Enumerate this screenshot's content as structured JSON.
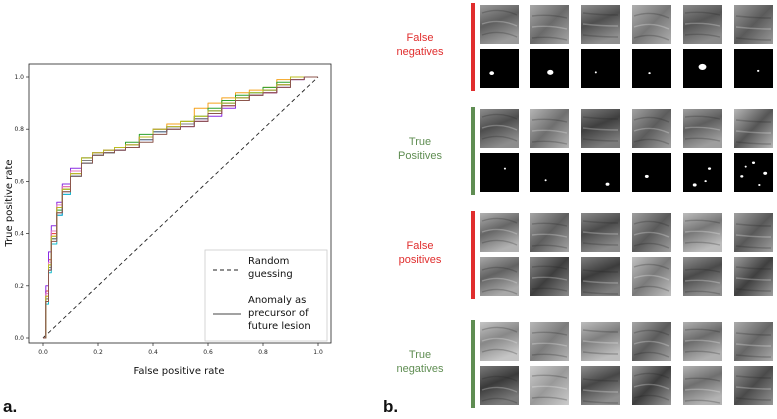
{
  "panel_a_label": "a.",
  "panel_b_label": "b.",
  "chart_data": {
    "type": "line",
    "title": "",
    "xlabel": "False positive rate",
    "ylabel": "True positive rate",
    "xlim": [
      0.0,
      1.0
    ],
    "ylim": [
      0.0,
      1.0
    ],
    "xticks": [
      "0.0",
      "0.2",
      "0.4",
      "0.6",
      "0.8",
      "1.0"
    ],
    "yticks": [
      "0.0",
      "0.2",
      "0.4",
      "0.6",
      "0.8",
      "1.0"
    ],
    "grid": false,
    "legend_position": "bottom-right",
    "legend": [
      {
        "label": "Random guessing",
        "lines": [
          "Random",
          "guessing"
        ],
        "style": "dashed",
        "color": "#222222"
      },
      {
        "label": "Anomaly as precursor of future lesion",
        "lines": [
          "Anomaly as",
          "precursor of",
          "future lesion"
        ],
        "style": "solid",
        "color": "#444444"
      }
    ],
    "baseline": {
      "x": [
        0,
        1
      ],
      "y": [
        0,
        1
      ]
    },
    "series": [
      {
        "color": "#1f4fd8",
        "x": [
          0,
          0.01,
          0.02,
          0.03,
          0.05,
          0.07,
          0.1,
          0.14,
          0.18,
          0.22,
          0.26,
          0.3,
          0.35,
          0.4,
          0.45,
          0.5,
          0.55,
          0.6,
          0.65,
          0.7,
          0.75,
          0.8,
          0.85,
          0.9,
          0.95,
          1.0
        ],
        "y": [
          0,
          0.14,
          0.26,
          0.38,
          0.47,
          0.55,
          0.62,
          0.67,
          0.7,
          0.71,
          0.72,
          0.73,
          0.76,
          0.79,
          0.81,
          0.82,
          0.84,
          0.87,
          0.9,
          0.92,
          0.93,
          0.95,
          0.97,
          1.0,
          1.0,
          1.0
        ]
      },
      {
        "color": "#e8352a",
        "x": [
          0,
          0.01,
          0.02,
          0.03,
          0.05,
          0.07,
          0.1,
          0.14,
          0.18,
          0.22,
          0.26,
          0.3,
          0.35,
          0.4,
          0.45,
          0.5,
          0.55,
          0.6,
          0.65,
          0.7,
          0.75,
          0.8,
          0.85,
          0.9,
          0.95,
          1.0
        ],
        "y": [
          0,
          0.18,
          0.3,
          0.4,
          0.5,
          0.58,
          0.64,
          0.68,
          0.71,
          0.72,
          0.72,
          0.74,
          0.77,
          0.8,
          0.81,
          0.82,
          0.83,
          0.86,
          0.89,
          0.92,
          0.93,
          0.94,
          0.97,
          1.0,
          1.0,
          1.0
        ]
      },
      {
        "color": "#f5a21b",
        "x": [
          0,
          0.01,
          0.02,
          0.03,
          0.05,
          0.07,
          0.1,
          0.14,
          0.18,
          0.22,
          0.26,
          0.3,
          0.35,
          0.4,
          0.45,
          0.5,
          0.55,
          0.6,
          0.65,
          0.7,
          0.75,
          0.8,
          0.85,
          0.9,
          0.95,
          1.0
        ],
        "y": [
          0,
          0.16,
          0.28,
          0.39,
          0.5,
          0.57,
          0.63,
          0.68,
          0.71,
          0.72,
          0.73,
          0.74,
          0.77,
          0.8,
          0.82,
          0.83,
          0.88,
          0.9,
          0.92,
          0.94,
          0.95,
          0.96,
          0.99,
          1.0,
          1.0,
          1.0
        ]
      },
      {
        "color": "#8a2be2",
        "x": [
          0,
          0.01,
          0.02,
          0.03,
          0.05,
          0.07,
          0.1,
          0.14,
          0.18,
          0.22,
          0.26,
          0.3,
          0.35,
          0.4,
          0.45,
          0.5,
          0.55,
          0.6,
          0.65,
          0.7,
          0.75,
          0.8,
          0.85,
          0.9,
          0.95,
          1.0
        ],
        "y": [
          0,
          0.2,
          0.33,
          0.43,
          0.52,
          0.59,
          0.65,
          0.69,
          0.71,
          0.72,
          0.72,
          0.73,
          0.76,
          0.79,
          0.8,
          0.81,
          0.83,
          0.85,
          0.88,
          0.91,
          0.93,
          0.94,
          0.96,
          0.99,
          1.0,
          1.0
        ]
      },
      {
        "color": "#2ca02c",
        "x": [
          0,
          0.01,
          0.02,
          0.03,
          0.05,
          0.07,
          0.1,
          0.14,
          0.18,
          0.22,
          0.26,
          0.3,
          0.35,
          0.4,
          0.45,
          0.5,
          0.55,
          0.6,
          0.65,
          0.7,
          0.75,
          0.8,
          0.85,
          0.9,
          0.95,
          1.0
        ],
        "y": [
          0,
          0.15,
          0.27,
          0.38,
          0.49,
          0.57,
          0.64,
          0.69,
          0.71,
          0.72,
          0.73,
          0.75,
          0.78,
          0.8,
          0.81,
          0.83,
          0.85,
          0.88,
          0.91,
          0.93,
          0.94,
          0.96,
          0.98,
          1.0,
          1.0,
          1.0
        ]
      },
      {
        "color": "#17becf",
        "x": [
          0,
          0.01,
          0.02,
          0.03,
          0.05,
          0.07,
          0.1,
          0.14,
          0.18,
          0.22,
          0.26,
          0.3,
          0.35,
          0.4,
          0.45,
          0.5,
          0.55,
          0.6,
          0.65,
          0.7,
          0.75,
          0.8,
          0.85,
          0.9,
          0.95,
          1.0
        ],
        "y": [
          0,
          0.13,
          0.25,
          0.36,
          0.47,
          0.55,
          0.62,
          0.67,
          0.7,
          0.71,
          0.72,
          0.74,
          0.76,
          0.79,
          0.81,
          0.82,
          0.84,
          0.87,
          0.9,
          0.92,
          0.94,
          0.95,
          0.97,
          1.0,
          1.0,
          1.0
        ]
      },
      {
        "color": "#e377c2",
        "x": [
          0,
          0.01,
          0.02,
          0.03,
          0.05,
          0.07,
          0.1,
          0.14,
          0.18,
          0.22,
          0.26,
          0.3,
          0.35,
          0.4,
          0.45,
          0.5,
          0.55,
          0.6,
          0.65,
          0.7,
          0.75,
          0.8,
          0.85,
          0.9,
          0.95,
          1.0
        ],
        "y": [
          0,
          0.17,
          0.29,
          0.41,
          0.51,
          0.58,
          0.64,
          0.68,
          0.71,
          0.72,
          0.72,
          0.74,
          0.77,
          0.8,
          0.81,
          0.82,
          0.84,
          0.86,
          0.89,
          0.92,
          0.93,
          0.95,
          0.97,
          1.0,
          1.0,
          1.0
        ]
      },
      {
        "color": "#7f7f7f",
        "x": [
          0,
          0.01,
          0.02,
          0.03,
          0.05,
          0.07,
          0.1,
          0.14,
          0.18,
          0.22,
          0.26,
          0.3,
          0.35,
          0.4,
          0.45,
          0.5,
          0.55,
          0.6,
          0.65,
          0.7,
          0.75,
          0.8,
          0.85,
          0.9,
          0.95,
          1.0
        ],
        "y": [
          0,
          0.15,
          0.27,
          0.38,
          0.48,
          0.56,
          0.63,
          0.68,
          0.7,
          0.71,
          0.72,
          0.73,
          0.76,
          0.79,
          0.8,
          0.82,
          0.84,
          0.87,
          0.9,
          0.92,
          0.93,
          0.95,
          0.97,
          1.0,
          1.0,
          1.0
        ]
      },
      {
        "color": "#bcbd22",
        "x": [
          0,
          0.01,
          0.02,
          0.03,
          0.05,
          0.07,
          0.1,
          0.14,
          0.18,
          0.22,
          0.26,
          0.3,
          0.35,
          0.4,
          0.45,
          0.5,
          0.55,
          0.6,
          0.65,
          0.7,
          0.75,
          0.8,
          0.85,
          0.9,
          0.95,
          1.0
        ],
        "y": [
          0,
          0.16,
          0.28,
          0.39,
          0.5,
          0.57,
          0.63,
          0.69,
          0.71,
          0.72,
          0.73,
          0.74,
          0.77,
          0.8,
          0.81,
          0.83,
          0.85,
          0.87,
          0.9,
          0.92,
          0.94,
          0.95,
          0.97,
          1.0,
          1.0,
          1.0
        ]
      },
      {
        "color": "#8c564b",
        "x": [
          0,
          0.01,
          0.02,
          0.03,
          0.05,
          0.07,
          0.1,
          0.14,
          0.18,
          0.22,
          0.26,
          0.3,
          0.35,
          0.4,
          0.45,
          0.5,
          0.55,
          0.6,
          0.65,
          0.7,
          0.75,
          0.8,
          0.85,
          0.9,
          0.95,
          1.0
        ],
        "y": [
          0,
          0.14,
          0.26,
          0.37,
          0.48,
          0.56,
          0.62,
          0.67,
          0.7,
          0.71,
          0.72,
          0.73,
          0.75,
          0.78,
          0.8,
          0.81,
          0.83,
          0.86,
          0.89,
          0.91,
          0.93,
          0.94,
          0.96,
          0.99,
          1.0,
          1.0
        ]
      }
    ]
  },
  "panel_b": {
    "groups": [
      {
        "label_lines": [
          "False",
          "negatives"
        ],
        "color": "#e02d2d",
        "rows": [
          {
            "kind": "tile",
            "tones": [
              [
                "#9a9a9a",
                "#5f5f5f"
              ],
              [
                "#a8a8a8",
                "#6a6a6a"
              ],
              [
                "#8f8f8f",
                "#4f4f4f"
              ],
              [
                "#b0b0b0",
                "#777777"
              ],
              [
                "#8a8a8a",
                "#555555"
              ],
              [
                "#9c9c9c",
                "#5a5a5a"
              ]
            ]
          },
          {
            "kind": "mask",
            "blobs": [
              [
                [
                  0.3,
                  0.62,
                  0.06
                ]
              ],
              [
                [
                  0.52,
                  0.6,
                  0.08
                ]
              ],
              [
                [
                  0.38,
                  0.6,
                  0.025
                ]
              ],
              [
                [
                  0.45,
                  0.62,
                  0.03
                ]
              ],
              [
                [
                  0.5,
                  0.46,
                  0.1
                ]
              ],
              [
                [
                  0.62,
                  0.56,
                  0.03
                ]
              ]
            ]
          }
        ]
      },
      {
        "label_lines": [
          "True",
          "Positives"
        ],
        "color": "#5f8d52",
        "rows": [
          {
            "kind": "tile",
            "tones": [
              [
                "#8d8d8d",
                "#4e4e4e"
              ],
              [
                "#b5b5b5",
                "#6f6f6f"
              ],
              [
                "#7c7c7c",
                "#3f3f3f"
              ],
              [
                "#a2a2a2",
                "#5c5c5c"
              ],
              [
                "#9e9e9e",
                "#5e5e5e"
              ],
              [
                "#b7b7b7",
                "#555555"
              ]
            ]
          },
          {
            "kind": "mask",
            "blobs": [
              [
                [
                  0.64,
                  0.4,
                  0.025
                ]
              ],
              [
                [
                  0.4,
                  0.7,
                  0.025
                ]
              ],
              [
                [
                  0.68,
                  0.8,
                  0.05
                ]
              ],
              [
                [
                  0.38,
                  0.6,
                  0.05
                ]
              ],
              [
                [
                  0.3,
                  0.82,
                  0.05
                ],
                [
                  0.68,
                  0.4,
                  0.04
                ],
                [
                  0.58,
                  0.72,
                  0.03
                ]
              ],
              [
                [
                  0.2,
                  0.6,
                  0.04
                ],
                [
                  0.5,
                  0.25,
                  0.04
                ],
                [
                  0.8,
                  0.52,
                  0.05
                ],
                [
                  0.65,
                  0.82,
                  0.03
                ],
                [
                  0.3,
                  0.35,
                  0.02
                ]
              ]
            ]
          }
        ]
      },
      {
        "label_lines": [
          "False",
          "positives"
        ],
        "color": "#e02d2d",
        "rows": [
          {
            "kind": "tile",
            "tones": [
              [
                "#b2b2b2",
                "#666666"
              ],
              [
                "#a5a5a5",
                "#5e5e5e"
              ],
              [
                "#8a8a8a",
                "#4b4b4b"
              ],
              [
                "#9f9f9f",
                "#5a5a5a"
              ],
              [
                "#bcbcbc",
                "#777777"
              ],
              [
                "#a0a0a0",
                "#585858"
              ]
            ]
          },
          {
            "kind": "tile",
            "tones": [
              [
                "#a9a9a9",
                "#626262"
              ],
              [
                "#8b8b8b",
                "#3e3e3e"
              ],
              [
                "#7e7e7e",
                "#3c3c3c"
              ],
              [
                "#c2c2c2",
                "#7a7a7a"
              ],
              [
                "#8f8f8f",
                "#4a4a4a"
              ],
              [
                "#9d9d9d",
                "#3f3f3f"
              ]
            ]
          }
        ]
      },
      {
        "label_lines": [
          "True",
          "negatives"
        ],
        "color": "#5f8d52",
        "rows": [
          {
            "kind": "tile",
            "tones": [
              [
                "#c5c5c5",
                "#888888"
              ],
              [
                "#b6b6b6",
                "#7c7c7c"
              ],
              [
                "#bdbdbd",
                "#7f7f7f"
              ],
              [
                "#a6a6a6",
                "#5b5b5b"
              ],
              [
                "#b0b0b0",
                "#6b6b6b"
              ],
              [
                "#ababab",
                "#666666"
              ]
            ]
          },
          {
            "kind": "tile",
            "tones": [
              [
                "#7a7a7a",
                "#3a3a3a"
              ],
              [
                "#cccccc",
                "#999999"
              ],
              [
                "#8e8e8e",
                "#474747"
              ],
              [
                "#9a9a9a",
                "#3d3d3d"
              ],
              [
                "#b3b3b3",
                "#6f6f6f"
              ],
              [
                "#969696",
                "#4a4a4a"
              ]
            ]
          }
        ]
      }
    ]
  }
}
